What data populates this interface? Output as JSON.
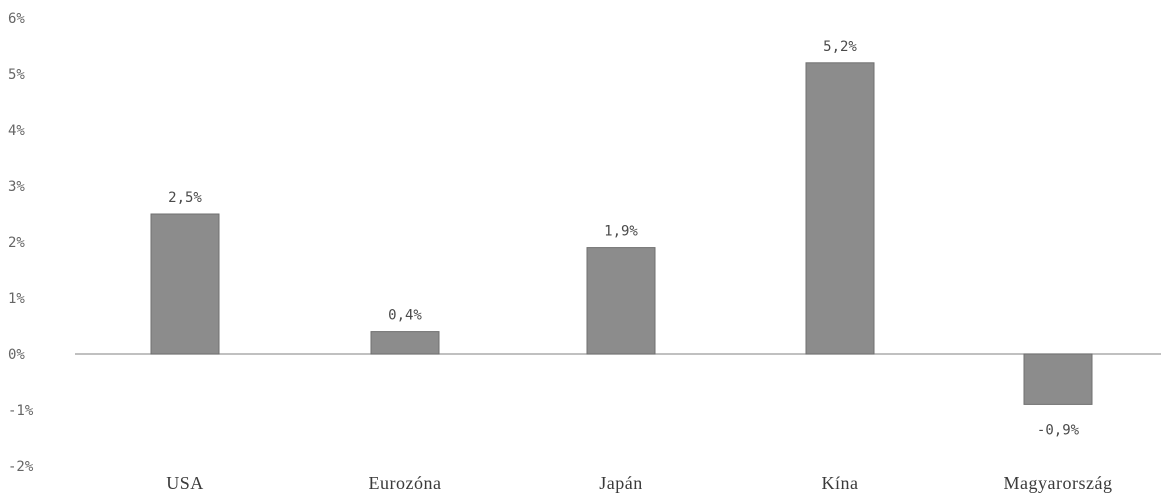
{
  "chart_data": {
    "type": "bar",
    "categories": [
      "USA",
      "Eurozóna",
      "Japán",
      "Kína",
      "Magyarország"
    ],
    "values": [
      2.5,
      0.4,
      1.9,
      5.2,
      -0.9
    ],
    "data_labels": [
      "2,5%",
      "0,4%",
      "1,9%",
      "5,2%",
      "-0,9%"
    ],
    "y_ticks": [
      6,
      5,
      4,
      3,
      2,
      1,
      0,
      -1,
      -2
    ],
    "y_tick_labels": [
      "6%",
      "5%",
      "4%",
      "3%",
      "2%",
      "1%",
      "0%",
      "-1%",
      "-2%"
    ],
    "ylim": [
      -2,
      6
    ],
    "grid": false,
    "legend": "none",
    "title": "",
    "xlabel": "",
    "ylabel": "",
    "colors": {
      "bar": "#8c8c8c",
      "zero_line": "#9a9a9a",
      "text": "#4a4a4a"
    }
  }
}
